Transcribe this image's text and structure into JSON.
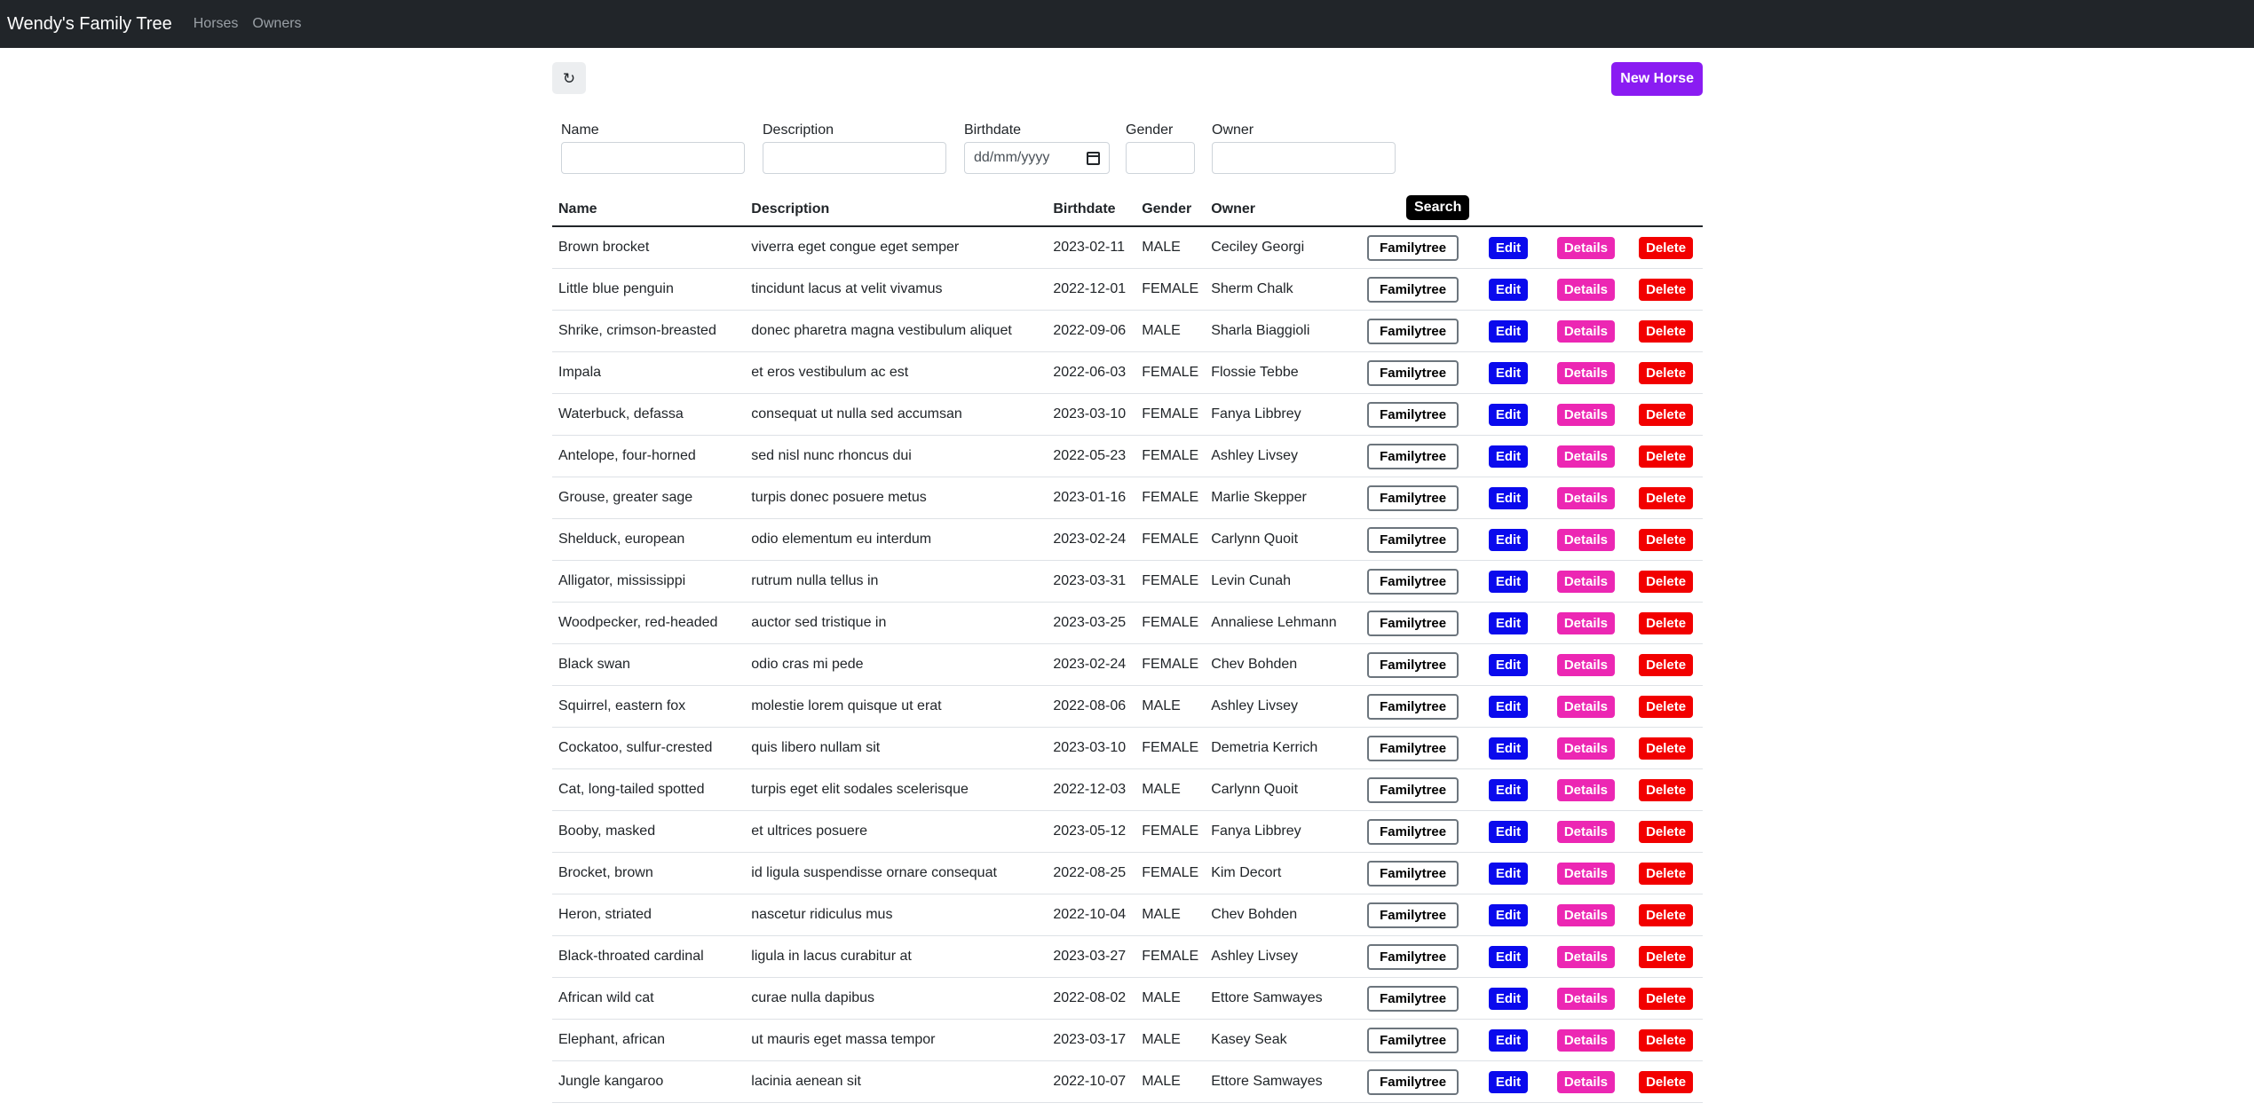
{
  "navbar": {
    "brand": "Wendy's Family Tree",
    "links": [
      "Horses",
      "Owners"
    ]
  },
  "toolbar": {
    "refresh_icon": "↻",
    "new_label": "New Horse"
  },
  "search": {
    "labels": {
      "name": "Name",
      "description": "Description",
      "birthdate": "Birthdate",
      "gender": "Gender",
      "owner": "Owner"
    },
    "birthdate_placeholder": "dd/mm/yyyy",
    "button_label": "Search"
  },
  "table": {
    "headers": [
      "Name",
      "Description",
      "Birthdate",
      "Gender",
      "Owner"
    ],
    "action_labels": {
      "familytree": "Familytree",
      "edit": "Edit",
      "details": "Details",
      "delete": "Delete"
    },
    "rows": [
      [
        "Brown brocket",
        "viverra eget congue eget semper",
        "2023-02-11",
        "MALE",
        "Ceciley Georgi"
      ],
      [
        "Little blue penguin",
        "tincidunt lacus at velit vivamus",
        "2022-12-01",
        "FEMALE",
        "Sherm Chalk"
      ],
      [
        "Shrike, crimson-breasted",
        "donec pharetra magna vestibulum aliquet",
        "2022-09-06",
        "MALE",
        "Sharla Biaggioli"
      ],
      [
        "Impala",
        "et eros vestibulum ac est",
        "2022-06-03",
        "FEMALE",
        "Flossie Tebbe"
      ],
      [
        "Waterbuck, defassa",
        "consequat ut nulla sed accumsan",
        "2023-03-10",
        "FEMALE",
        "Fanya Libbrey"
      ],
      [
        "Antelope, four-horned",
        "sed nisl nunc rhoncus dui",
        "2022-05-23",
        "FEMALE",
        "Ashley Livsey"
      ],
      [
        "Grouse, greater sage",
        "turpis donec posuere metus",
        "2023-01-16",
        "FEMALE",
        "Marlie Skepper"
      ],
      [
        "Shelduck, european",
        "odio elementum eu interdum",
        "2023-02-24",
        "FEMALE",
        "Carlynn Quoit"
      ],
      [
        "Alligator, mississippi",
        "rutrum nulla tellus in",
        "2023-03-31",
        "FEMALE",
        "Levin Cunah"
      ],
      [
        "Woodpecker, red-headed",
        "auctor sed tristique in",
        "2023-03-25",
        "FEMALE",
        "Annaliese Lehmann"
      ],
      [
        "Black swan",
        "odio cras mi pede",
        "2023-02-24",
        "FEMALE",
        "Chev Bohden"
      ],
      [
        "Squirrel, eastern fox",
        "molestie lorem quisque ut erat",
        "2022-08-06",
        "MALE",
        "Ashley Livsey"
      ],
      [
        "Cockatoo, sulfur-crested",
        "quis libero nullam sit",
        "2023-03-10",
        "FEMALE",
        "Demetria Kerrich"
      ],
      [
        "Cat, long-tailed spotted",
        "turpis eget elit sodales scelerisque",
        "2022-12-03",
        "MALE",
        "Carlynn Quoit"
      ],
      [
        "Booby, masked",
        "et ultrices posuere",
        "2023-05-12",
        "FEMALE",
        "Fanya Libbrey"
      ],
      [
        "Brocket, brown",
        "id ligula suspendisse ornare consequat",
        "2022-08-25",
        "FEMALE",
        "Kim Decort"
      ],
      [
        "Heron, striated",
        "nascetur ridiculus mus",
        "2022-10-04",
        "MALE",
        "Chev Bohden"
      ],
      [
        "Black-throated cardinal",
        "ligula in lacus curabitur at",
        "2023-03-27",
        "FEMALE",
        "Ashley Livsey"
      ],
      [
        "African wild cat",
        "curae nulla dapibus",
        "2022-08-02",
        "MALE",
        "Ettore Samwayes"
      ],
      [
        "Elephant, african",
        "ut mauris eget massa tempor",
        "2023-03-17",
        "MALE",
        "Kasey Seak"
      ],
      [
        "Jungle kangaroo",
        "lacinia aenean sit",
        "2022-10-07",
        "MALE",
        "Ettore Samwayes"
      ]
    ]
  }
}
